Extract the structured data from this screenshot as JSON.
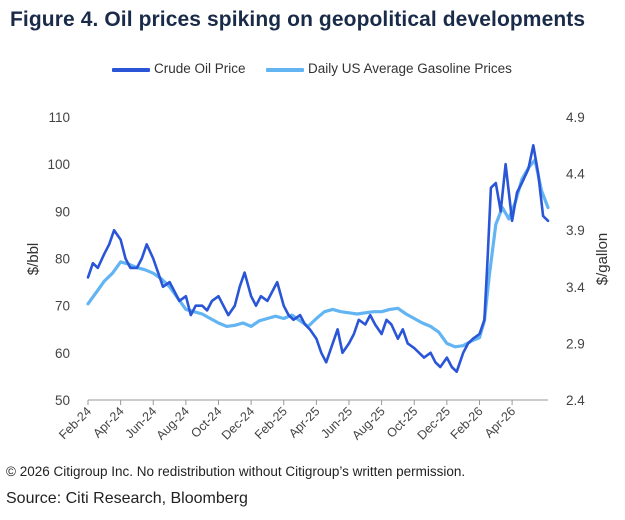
{
  "title": "Figure 4. Oil prices spiking on geopolitical developments",
  "footnote": "© 2026 Citigroup Inc. No redistribution without Citigroup’s written permission.",
  "source": "Source: Citi Research, Bloomberg",
  "colors": {
    "crude": "#2a55d6",
    "gasoline": "#62b5f2",
    "title": "#1a2b49"
  },
  "chart_data": {
    "type": "line",
    "ylabel": "$/bbl",
    "y2label": "$/gallon",
    "ylim": [
      50,
      110
    ],
    "y2lim": [
      2.4,
      4.9
    ],
    "yticks": [
      "50",
      "60",
      "70",
      "80",
      "90",
      "100",
      "110"
    ],
    "y2ticks": [
      "2.4",
      "2.9",
      "3.4",
      "3.9",
      "4.4",
      "4.9"
    ],
    "x_tick_labels": [
      "Feb-24",
      "Apr-24",
      "Jun-24",
      "Aug-24",
      "Oct-24",
      "Dec-24",
      "Feb-25",
      "Apr-25",
      "Jun-25",
      "Aug-25",
      "Oct-25",
      "Dec-25",
      "Feb-26",
      "Apr-26"
    ],
    "x_tick_months": [
      0,
      2,
      4,
      6,
      8,
      10,
      12,
      14,
      16,
      18,
      20,
      22,
      24,
      26
    ],
    "x_domain_months": [
      0,
      28.2
    ],
    "grid": false,
    "legend_position": "top-center",
    "series": [
      {
        "name": "Crude Oil Price",
        "axis": "left",
        "color": "#2a55d6",
        "x_months": [
          0,
          0.3,
          0.6,
          1.0,
          1.3,
          1.6,
          2.0,
          2.3,
          2.6,
          3.0,
          3.3,
          3.6,
          4.0,
          4.3,
          4.6,
          5.0,
          5.3,
          5.6,
          6.0,
          6.3,
          6.6,
          7.0,
          7.3,
          7.6,
          8.0,
          8.3,
          8.6,
          9.0,
          9.3,
          9.6,
          10.0,
          10.3,
          10.6,
          11.0,
          11.3,
          11.6,
          12.0,
          12.3,
          12.6,
          13.0,
          13.3,
          13.6,
          14.0,
          14.3,
          14.6,
          15.0,
          15.3,
          15.6,
          16.0,
          16.3,
          16.6,
          17.0,
          17.3,
          17.6,
          18.0,
          18.3,
          18.6,
          19.0,
          19.3,
          19.6,
          20.0,
          20.3,
          20.6,
          21.0,
          21.3,
          21.6,
          22.0,
          22.3,
          22.6,
          23.0,
          23.3,
          23.6,
          24.0,
          24.3,
          24.5,
          24.7,
          25.0,
          25.3,
          25.6,
          26.0,
          26.3,
          26.6,
          27.0,
          27.3,
          27.6,
          27.9,
          28.2
        ],
        "values": [
          76,
          79,
          78,
          81,
          83,
          86,
          84,
          80,
          78,
          78,
          80,
          83,
          80,
          77,
          74,
          75,
          73,
          71,
          72,
          68,
          70,
          70,
          69,
          71,
          72,
          70,
          68,
          70,
          74,
          77,
          72,
          70,
          72,
          71,
          73,
          75,
          70,
          68,
          67,
          68,
          66,
          65,
          63,
          60,
          58,
          62,
          65,
          60,
          62,
          64,
          67,
          66,
          68,
          66,
          64,
          67,
          66,
          63,
          65,
          62,
          61,
          60,
          59,
          60,
          58,
          57,
          59,
          57,
          56,
          60,
          62,
          63,
          64,
          67,
          80,
          95,
          96,
          90,
          100,
          88,
          94,
          96,
          99,
          104,
          98,
          89,
          88
        ]
      },
      {
        "name": "Daily US Average Gasoline Prices",
        "axis": "right",
        "color": "#62b5f2",
        "x_months": [
          0,
          0.5,
          1.0,
          1.5,
          2.0,
          2.5,
          3.0,
          3.5,
          4.0,
          4.5,
          5.0,
          5.5,
          6.0,
          6.5,
          7.0,
          7.5,
          8.0,
          8.5,
          9.0,
          9.5,
          10.0,
          10.5,
          11.0,
          11.5,
          12.0,
          12.5,
          13.0,
          13.5,
          14.0,
          14.5,
          15.0,
          15.5,
          16.0,
          16.5,
          17.0,
          17.5,
          18.0,
          18.5,
          19.0,
          19.5,
          20.0,
          20.5,
          21.0,
          21.5,
          22.0,
          22.5,
          23.0,
          23.5,
          24.0,
          24.3,
          24.6,
          25.0,
          25.4,
          25.8,
          26.2,
          26.6,
          27.0,
          27.4,
          27.8,
          28.2
        ],
        "values": [
          3.25,
          3.35,
          3.45,
          3.52,
          3.62,
          3.6,
          3.57,
          3.55,
          3.52,
          3.47,
          3.4,
          3.3,
          3.2,
          3.18,
          3.16,
          3.12,
          3.08,
          3.05,
          3.06,
          3.08,
          3.05,
          3.1,
          3.12,
          3.14,
          3.12,
          3.15,
          3.1,
          3.05,
          3.12,
          3.18,
          3.2,
          3.18,
          3.17,
          3.16,
          3.17,
          3.18,
          3.18,
          3.2,
          3.21,
          3.16,
          3.12,
          3.08,
          3.05,
          3.0,
          2.9,
          2.87,
          2.88,
          2.92,
          2.95,
          3.1,
          3.5,
          3.95,
          4.1,
          4.0,
          4.15,
          4.35,
          4.45,
          4.52,
          4.25,
          4.1
        ]
      }
    ]
  }
}
